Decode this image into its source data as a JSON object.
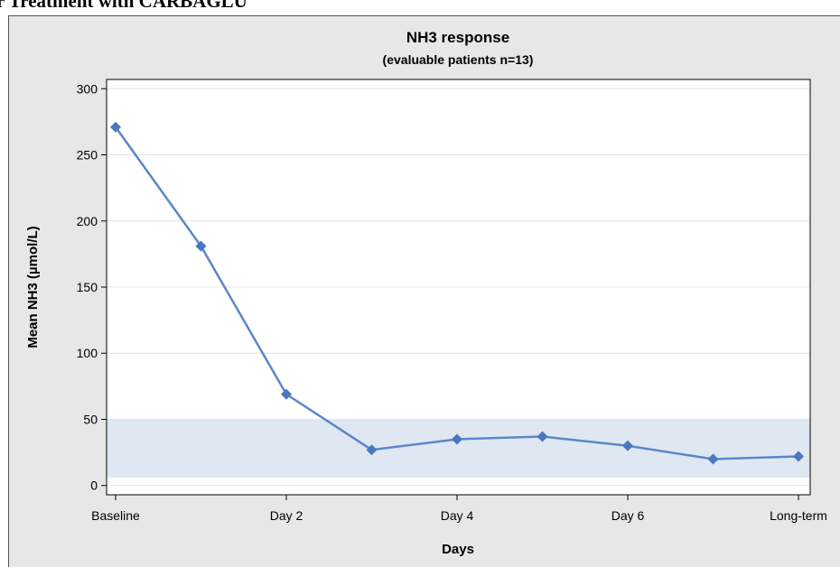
{
  "heading": "r Treatment with CARBAGLU",
  "chart_data": {
    "type": "line",
    "title": "NH3 response",
    "subtitle": "(evaluable patients n=13)",
    "x_label": "Days",
    "y_label": "Mean NH3 (µmol/L)",
    "categories": [
      "Baseline",
      null,
      "Day 2",
      null,
      "Day 4",
      null,
      "Day 6",
      null,
      "Long-term"
    ],
    "values": [
      271,
      181,
      69,
      27,
      35,
      37,
      30,
      20,
      22
    ],
    "color": "#5b87c8",
    "marker_color": "#4a78c0",
    "reference_band": [
      6,
      50
    ],
    "band_color": "#dfe7f3",
    "ylim": [
      -7,
      307
    ],
    "yticks": [
      0,
      50,
      100,
      150,
      200,
      250,
      300
    ],
    "grid": true
  }
}
